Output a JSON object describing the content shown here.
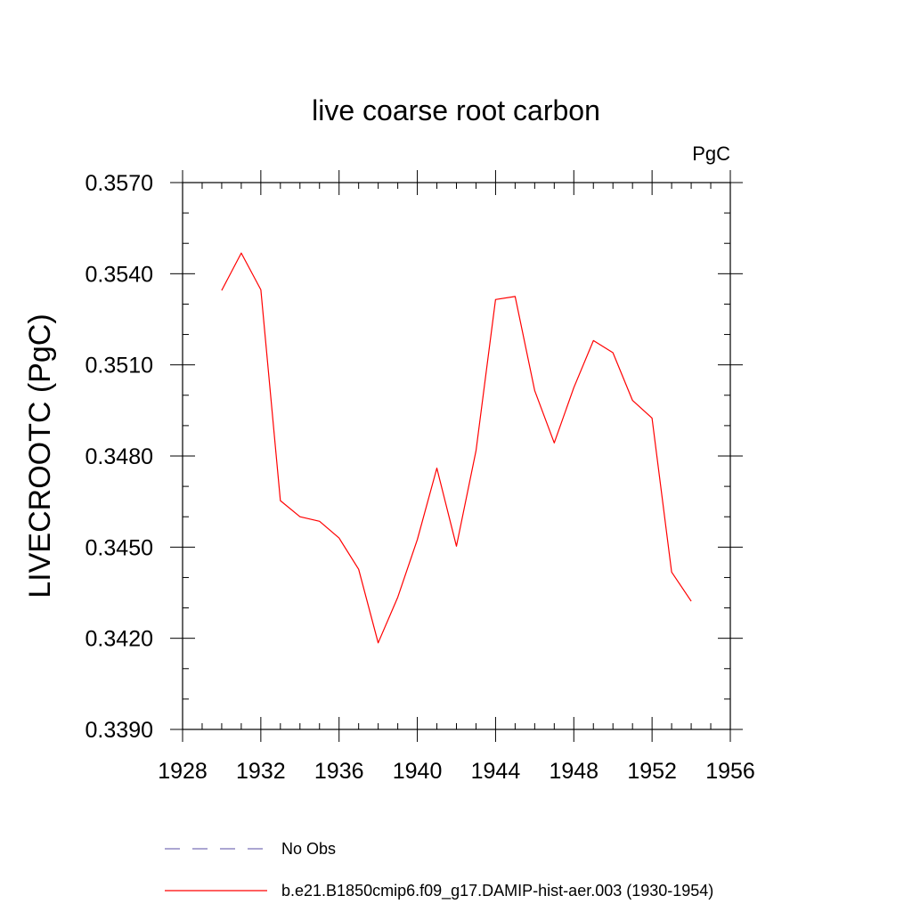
{
  "chart_data": {
    "type": "line",
    "title": "live coarse root carbon",
    "units_label": "PgC",
    "xlabel": "",
    "ylabel": "LIVECROOTC  (PgC)",
    "xlim": [
      1928,
      1956
    ],
    "ylim": [
      0.339,
      0.357
    ],
    "x_ticks": [
      "1928",
      "1932",
      "1936",
      "1940",
      "1944",
      "1948",
      "1952",
      "1956"
    ],
    "y_ticks": [
      "0.3390",
      "0.3420",
      "0.3450",
      "0.3480",
      "0.3510",
      "0.3540",
      "0.3570"
    ],
    "grid": false,
    "legend_position": "bottom",
    "series": [
      {
        "name": "b.e21.B1850cmip6.f09_g17.DAMIP-hist-aer.003 (1930-1954)",
        "color": "#ff0000",
        "style": "solid",
        "x": [
          1930,
          1931,
          1932,
          1933,
          1934,
          1935,
          1936,
          1937,
          1938,
          1939,
          1940,
          1941,
          1942,
          1943,
          1944,
          1945,
          1946,
          1947,
          1948,
          1949,
          1950,
          1951,
          1952,
          1953,
          1954
        ],
        "values": [
          0.35345,
          0.35468,
          0.35347,
          0.34653,
          0.346,
          0.34585,
          0.3453,
          0.34427,
          0.34185,
          0.34335,
          0.34525,
          0.3476,
          0.34503,
          0.34818,
          0.35315,
          0.35325,
          0.35015,
          0.34843,
          0.35025,
          0.3518,
          0.3514,
          0.34983,
          0.34925,
          0.34418,
          0.34322
        ]
      }
    ],
    "legend": [
      {
        "label": "No Obs",
        "color": "#7b72b8",
        "style": "dashed"
      },
      {
        "label": "b.e21.B1850cmip6.f09_g17.DAMIP-hist-aer.003 (1930-1954)",
        "color": "#ff0000",
        "style": "solid"
      }
    ]
  }
}
